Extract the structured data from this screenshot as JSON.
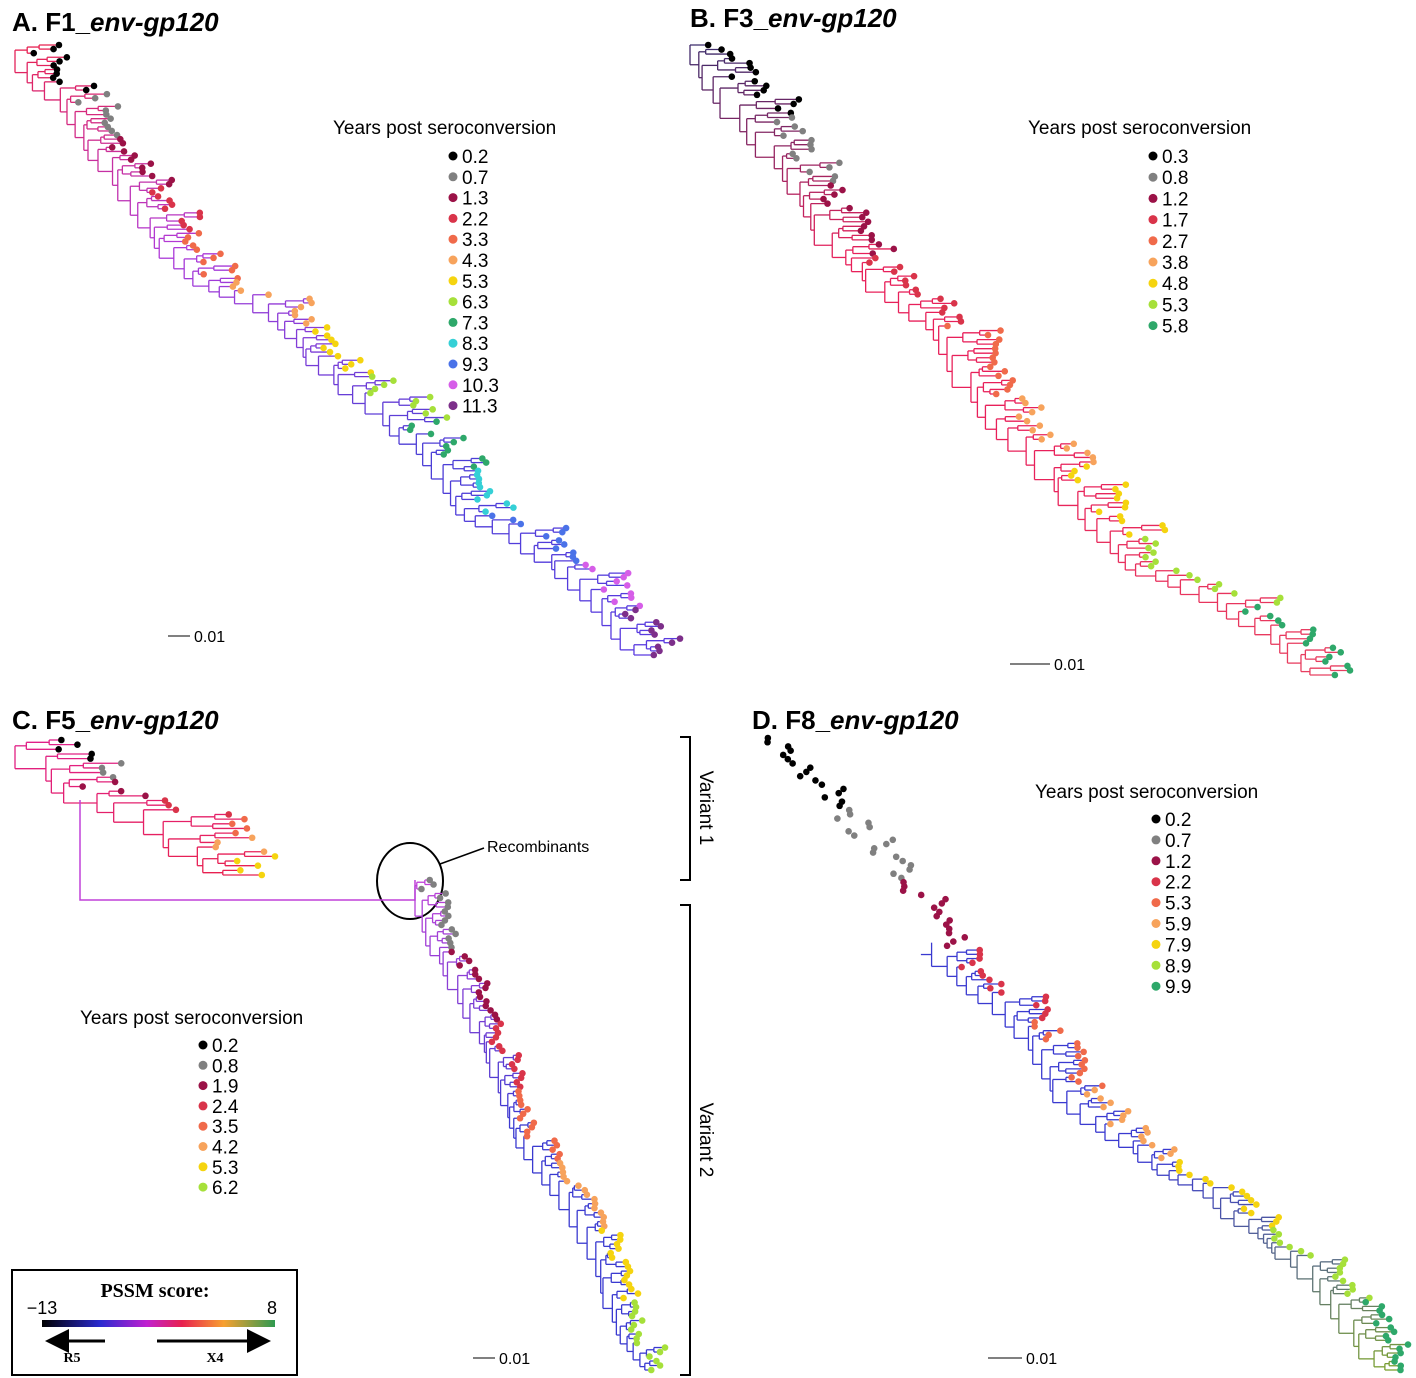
{
  "panels": [
    {
      "label": "A. F1_",
      "italic": "env-gp120",
      "scale_bar": "0.01",
      "legend": {
        "title": "Years post seroconversion",
        "items": [
          {
            "label": "0.2",
            "color": "#000000"
          },
          {
            "label": "0.7",
            "color": "#808080"
          },
          {
            "label": "1.3",
            "color": "#9b1247"
          },
          {
            "label": "2.2",
            "color": "#d9344a"
          },
          {
            "label": "3.3",
            "color": "#f06a4a"
          },
          {
            "label": "4.3",
            "color": "#f7a35c"
          },
          {
            "label": "5.3",
            "color": "#f5d40f"
          },
          {
            "label": "6.3",
            "color": "#a6e03a"
          },
          {
            "label": "7.3",
            "color": "#2ea86a"
          },
          {
            "label": "8.3",
            "color": "#35d0d6"
          },
          {
            "label": "9.3",
            "color": "#4a72e8"
          },
          {
            "label": "10.3",
            "color": "#d65ee8"
          },
          {
            "label": "11.3",
            "color": "#7d2f8a"
          }
        ]
      }
    },
    {
      "label": "B. F3_",
      "italic": "env-gp120",
      "scale_bar": "0.01",
      "legend": {
        "title": "Years post seroconversion",
        "items": [
          {
            "label": "0.3",
            "color": "#000000"
          },
          {
            "label": "0.8",
            "color": "#808080"
          },
          {
            "label": "1.2",
            "color": "#9b1247"
          },
          {
            "label": "1.7",
            "color": "#d9344a"
          },
          {
            "label": "2.7",
            "color": "#f06a4a"
          },
          {
            "label": "3.8",
            "color": "#f7a35c"
          },
          {
            "label": "4.8",
            "color": "#f5d40f"
          },
          {
            "label": "5.3",
            "color": "#a6e03a"
          },
          {
            "label": "5.8",
            "color": "#2ea86a"
          }
        ]
      }
    },
    {
      "label": "C. F5_",
      "italic": "env-gp120",
      "scale_bar": "0.01",
      "legend": {
        "title": "Years post seroconversion",
        "items": [
          {
            "label": "0.2",
            "color": "#000000"
          },
          {
            "label": "0.8",
            "color": "#808080"
          },
          {
            "label": "1.9",
            "color": "#9b1247"
          },
          {
            "label": "2.4",
            "color": "#d9344a"
          },
          {
            "label": "3.5",
            "color": "#f06a4a"
          },
          {
            "label": "4.2",
            "color": "#f7a35c"
          },
          {
            "label": "5.3",
            "color": "#f5d40f"
          },
          {
            "label": "6.2",
            "color": "#a6e03a"
          }
        ]
      }
    },
    {
      "label": "D. F8_",
      "italic": "env-gp120",
      "scale_bar": "0.01",
      "legend": {
        "title": "Years post seroconversion",
        "items": [
          {
            "label": "0.2",
            "color": "#000000"
          },
          {
            "label": "0.7",
            "color": "#808080"
          },
          {
            "label": "1.2",
            "color": "#9b1247"
          },
          {
            "label": "2.2",
            "color": "#d9344a"
          },
          {
            "label": "5.3",
            "color": "#f06a4a"
          },
          {
            "label": "5.9",
            "color": "#f7a35c"
          },
          {
            "label": "7.9",
            "color": "#f5d40f"
          },
          {
            "label": "8.9",
            "color": "#a6e03a"
          },
          {
            "label": "9.9",
            "color": "#2ea86a"
          }
        ]
      }
    }
  ],
  "annotations": {
    "recombinants": "Recombinants",
    "variant_1": "Variant 1",
    "variant_2": "Variant 2"
  },
  "pssm": {
    "title": "PSSM score:",
    "min": "−13",
    "max": "8",
    "left": "R5",
    "right": "X4"
  }
}
